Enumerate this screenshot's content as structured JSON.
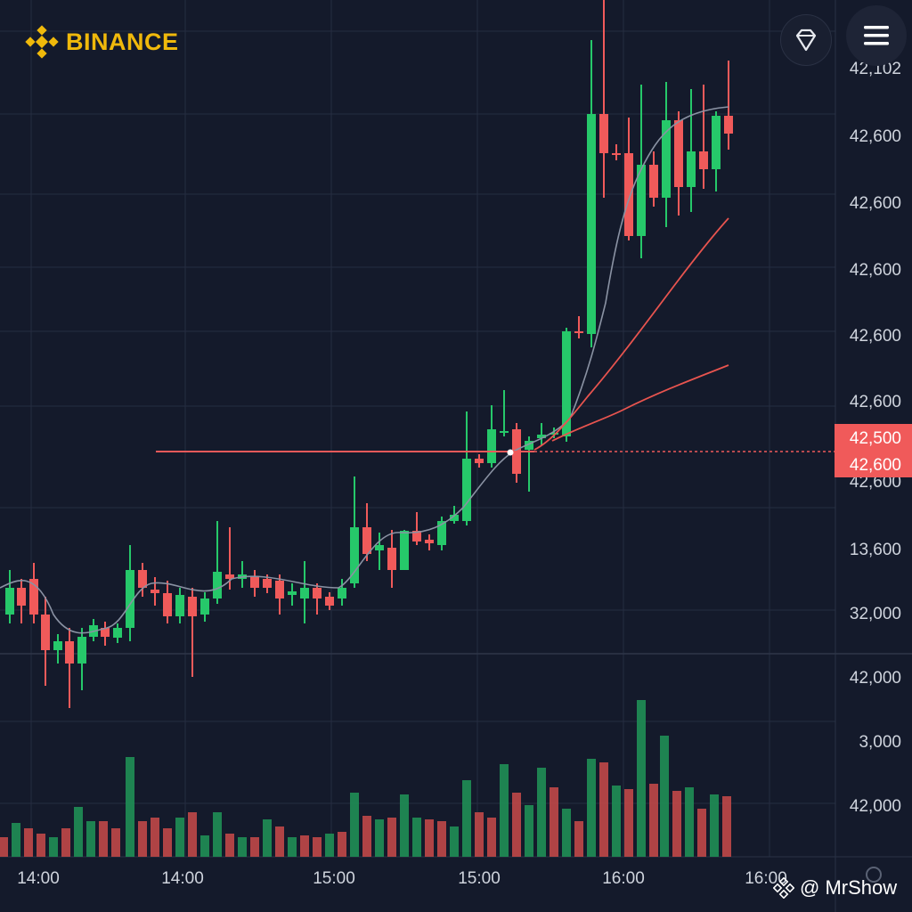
{
  "brand": {
    "name": "BINANCE",
    "logo_icon": "binance-diamond-icon",
    "color": "#f0b90b"
  },
  "buttons": {
    "filter_icon": "trophy-diamond-icon",
    "menu_icon": "hamburger-menu-icon"
  },
  "watermark": {
    "text": "@ MrShow",
    "icon": "binance-diamond-icon"
  },
  "colors": {
    "up": "#26c86a",
    "down": "#f05a5a",
    "background": "#141a2b",
    "grid": "#252d40",
    "ma_fast": "#8a92a3",
    "ma_slow": "#e8544f"
  },
  "chart_data": {
    "type": "candlestick",
    "price_axis_labels": [
      "42,102",
      "42,600",
      "42,600",
      "42,600",
      "42,600",
      "42,600",
      "42,600",
      "13,600",
      "32,000"
    ],
    "volume_axis_labels": [
      "42,000",
      "3,000",
      "42,000"
    ],
    "x_tick_labels": [
      "14:00",
      "14:00",
      "15:00",
      "15:00",
      "16:00",
      "16:00"
    ],
    "price_tags": [
      {
        "label": "42,500",
        "color": "#f05a5a"
      },
      {
        "label": "42,600",
        "color": "#f05a5a"
      }
    ],
    "price_line_label_behind": "42,600",
    "grid": true
  }
}
